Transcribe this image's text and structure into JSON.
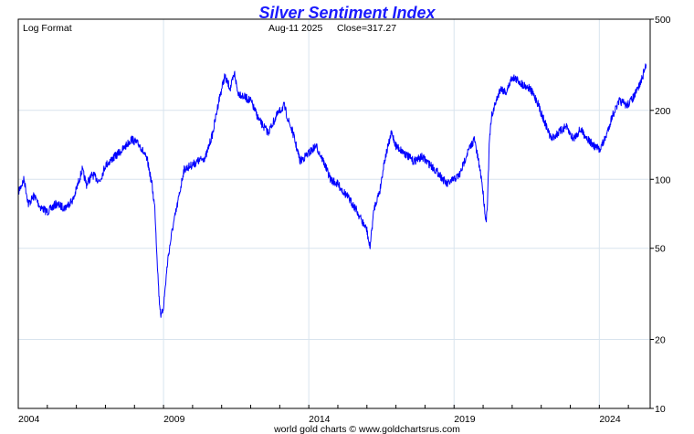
{
  "chart_data": {
    "type": "line",
    "title": "Silver Sentiment Index",
    "scale_label": "Log Format",
    "header_date": "Aug-11  2025",
    "header_close": "Close=317.27",
    "footer": "world gold charts © www.goldchartsrus.com",
    "y_scale": "log",
    "ylim": [
      10,
      500
    ],
    "y_ticks": [
      10,
      20,
      50,
      100,
      200,
      500
    ],
    "y_tick_labels": [
      "10",
      "20",
      "50",
      "100",
      "200",
      "500"
    ],
    "xlim": [
      2004.0,
      2025.75
    ],
    "x_ticks": [
      2004,
      2009,
      2014,
      2019,
      2024
    ],
    "x_tick_labels": [
      "2004",
      "2009",
      "2014",
      "2019",
      "2024"
    ],
    "grid": true,
    "colors": {
      "line": "#0000ff",
      "title": "#1a1aff",
      "grid": "#d8e4ee"
    },
    "series": [
      {
        "x": [
          2004.0,
          2004.2,
          2004.35,
          2004.55,
          2004.75,
          2005.0,
          2005.3,
          2005.6,
          2005.9,
          2006.2,
          2006.35,
          2006.55,
          2006.8,
          2007.0,
          2007.3,
          2007.6,
          2007.9,
          2008.2,
          2008.45,
          2008.6,
          2008.7,
          2008.78,
          2008.85,
          2008.92,
          2009.0,
          2009.15,
          2009.3,
          2009.5,
          2009.7,
          2009.95,
          2010.2,
          2010.45,
          2010.7,
          2010.9,
          2011.1,
          2011.3,
          2011.45,
          2011.55,
          2011.75,
          2012.0,
          2012.3,
          2012.6,
          2012.9,
          2013.15,
          2013.3,
          2013.45,
          2013.7,
          2014.0,
          2014.25,
          2014.5,
          2014.75,
          2015.0,
          2015.3,
          2015.6,
          2015.85,
          2016.0,
          2016.1,
          2016.25,
          2016.45,
          2016.6,
          2016.85,
          2017.0,
          2017.3,
          2017.6,
          2017.9,
          2018.2,
          2018.5,
          2018.75,
          2019.0,
          2019.2,
          2019.45,
          2019.7,
          2019.95,
          2020.1,
          2020.15,
          2020.22,
          2020.3,
          2020.45,
          2020.6,
          2020.8,
          2021.0,
          2021.2,
          2021.35,
          2021.6,
          2021.85,
          2022.1,
          2022.35,
          2022.6,
          2022.85,
          2023.1,
          2023.35,
          2023.6,
          2023.8,
          2024.0,
          2024.2,
          2024.45,
          2024.7,
          2024.95,
          2025.2,
          2025.45,
          2025.61
        ],
        "y": [
          88,
          100,
          78,
          85,
          76,
          72,
          78,
          75,
          82,
          110,
          95,
          105,
          98,
          115,
          125,
          135,
          150,
          140,
          120,
          95,
          75,
          45,
          30,
          25,
          28,
          45,
          60,
          80,
          110,
          115,
          120,
          125,
          160,
          220,
          280,
          250,
          290,
          240,
          230,
          220,
          180,
          160,
          190,
          210,
          180,
          160,
          120,
          130,
          140,
          120,
          100,
          95,
          85,
          75,
          65,
          60,
          50,
          75,
          90,
          120,
          160,
          140,
          130,
          120,
          125,
          115,
          105,
          95,
          100,
          105,
          130,
          150,
          100,
          65,
          80,
          150,
          190,
          220,
          250,
          240,
          280,
          270,
          260,
          250,
          220,
          180,
          150,
          160,
          170,
          150,
          165,
          150,
          140,
          135,
          150,
          190,
          220,
          210,
          230,
          270,
          317.27
        ]
      }
    ]
  }
}
